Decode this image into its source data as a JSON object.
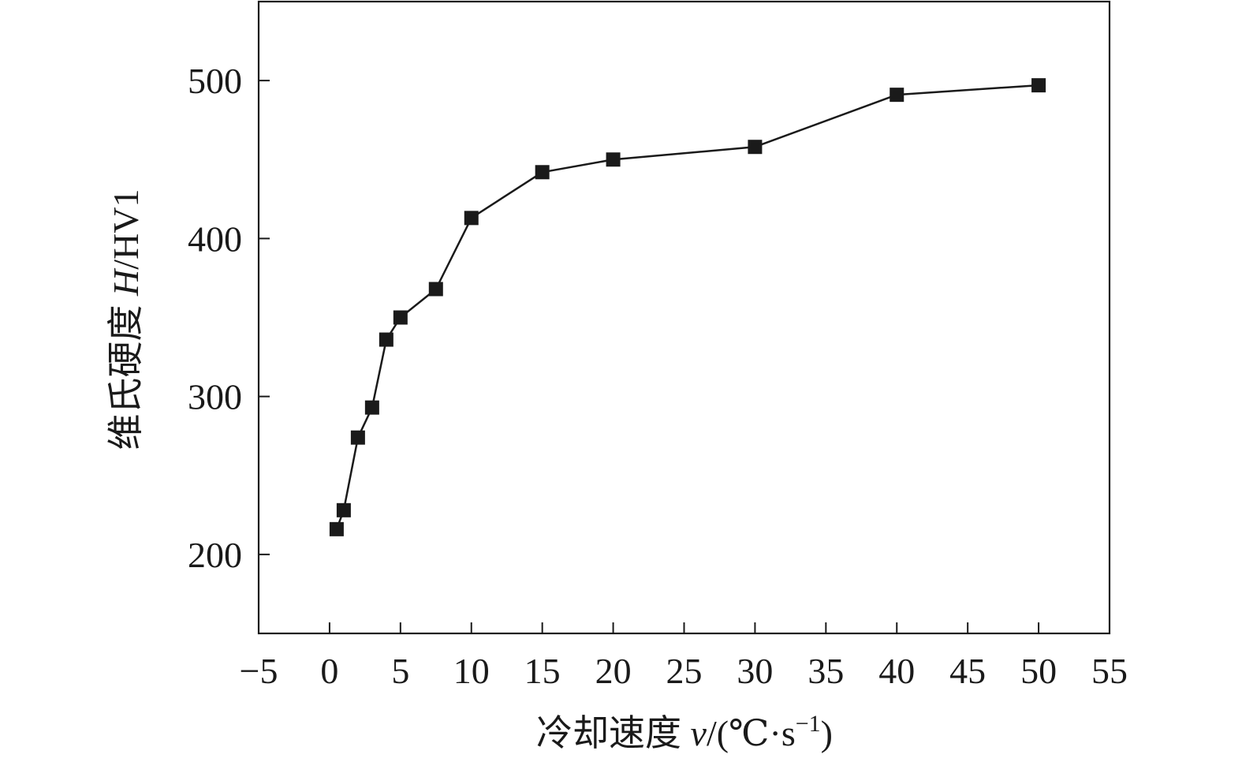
{
  "chart_data": {
    "type": "line",
    "xlabel": {
      "prefix": "冷却速度 ",
      "symbol": "v",
      "unit_open": "/(℃·s",
      "sup": "−1",
      "unit_close": ")"
    },
    "ylabel": {
      "prefix": "维氏硬度 ",
      "symbol": "H",
      "unit": "/HV1"
    },
    "xlim": [
      -5,
      55
    ],
    "ylim": [
      150,
      550
    ],
    "x_ticks": [
      -5,
      0,
      5,
      10,
      15,
      20,
      25,
      30,
      35,
      40,
      45,
      50,
      55
    ],
    "x_tick_labels": [
      "−5",
      "0",
      "5",
      "10",
      "15",
      "20",
      "25",
      "30",
      "35",
      "40",
      "45",
      "50",
      "55"
    ],
    "y_ticks": [
      200,
      300,
      400,
      500
    ],
    "y_tick_labels": [
      "200",
      "300",
      "400",
      "500"
    ],
    "grid": false,
    "marker": "square",
    "color": "#1a1a1a",
    "series": [
      {
        "x": [
          0.5,
          1,
          2,
          3,
          4,
          5,
          7.5,
          10,
          15,
          20,
          30,
          40,
          50
        ],
        "y": [
          216,
          228,
          274,
          293,
          336,
          350,
          368,
          413,
          442,
          450,
          458,
          491,
          497
        ]
      }
    ]
  }
}
